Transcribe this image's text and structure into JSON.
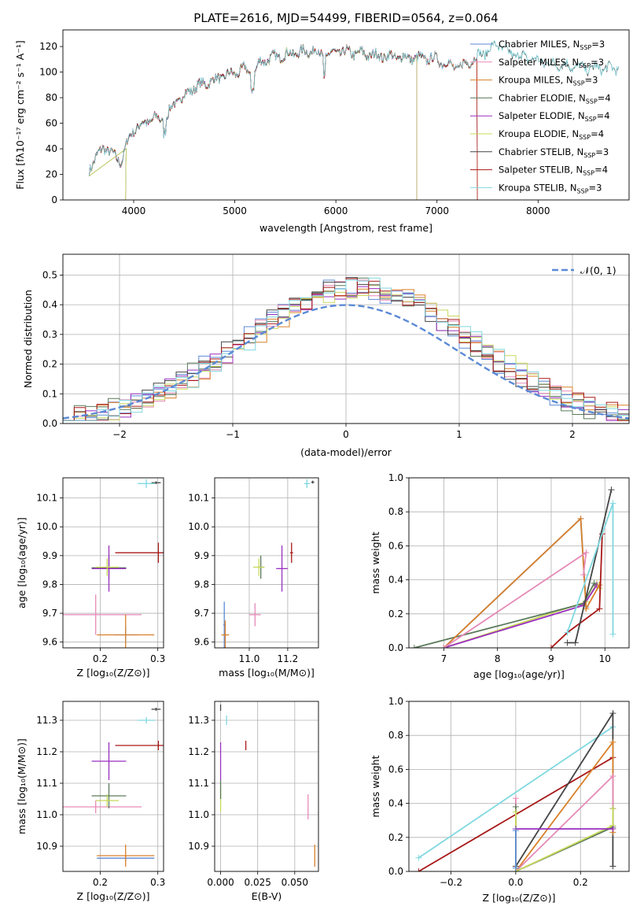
{
  "title": "PLATE=2616, MJD=54499, FIBERID=0564, z=0.064",
  "colors": {
    "chabrier_miles": "#5b8ad6",
    "salpeter_miles": "#e68ab8",
    "kroupa_miles": "#d9802a",
    "chabrier_elodie": "#5a7a5a",
    "salpeter_elodie": "#9a2fbf",
    "kroupa_elodie": "#c8d85a",
    "chabrier_stelib": "#444444",
    "salpeter_stelib": "#a81818",
    "kroupa_stelib": "#7fd8e0",
    "normal_curve": "#5b8ad6"
  },
  "chart_data": [
    {
      "id": "spectrum",
      "type": "line",
      "xlabel": "wavelength [Angstrom, rest frame]",
      "ylabel": "Flux [fλ10⁻¹⁷ erg cm⁻² s⁻¹ A⁻¹]",
      "xlim": [
        3300,
        8900
      ],
      "ylim": [
        0,
        133
      ],
      "xticks": [
        "4000",
        "5000",
        "6000",
        "7000",
        "8000"
      ],
      "yticks": [
        "0",
        "20",
        "40",
        "60",
        "80",
        "100",
        "120"
      ],
      "grid": false,
      "legend_position": "top-right",
      "legend": [
        {
          "key": "chabrier_miles",
          "base": "Chabrier MILES, N",
          "sub": "SSP",
          "tail": "=3"
        },
        {
          "key": "salpeter_miles",
          "base": "Salpeter MILES, N",
          "sub": "SSP",
          "tail": "=3"
        },
        {
          "key": "kroupa_miles",
          "base": "Kroupa MILES, N",
          "sub": "SSP",
          "tail": "=3"
        },
        {
          "key": "chabrier_elodie",
          "base": "Chabrier ELODIE, N",
          "sub": "SSP",
          "tail": "=4"
        },
        {
          "key": "salpeter_elodie",
          "base": "Salpeter ELODIE, N",
          "sub": "SSP",
          "tail": "=4"
        },
        {
          "key": "kroupa_elodie",
          "base": "Kroupa ELODIE, N",
          "sub": "SSP",
          "tail": "=4"
        },
        {
          "key": "chabrier_stelib",
          "base": "Chabrier STELIB, N",
          "sub": "SSP",
          "tail": "=3"
        },
        {
          "key": "salpeter_stelib",
          "base": "Salpeter STELIB, N",
          "sub": "SSP",
          "tail": "=4"
        },
        {
          "key": "kroupa_stelib",
          "base": "Kroupa STELIB, N",
          "sub": "SSP",
          "tail": "=3"
        }
      ],
      "continuum": [
        [
          3560,
          25
        ],
        [
          3650,
          35
        ],
        [
          3700,
          42
        ],
        [
          3800,
          35
        ],
        [
          3880,
          30
        ],
        [
          3950,
          48
        ],
        [
          4000,
          55
        ],
        [
          4100,
          60
        ],
        [
          4200,
          64
        ],
        [
          4300,
          62
        ],
        [
          4400,
          75
        ],
        [
          4500,
          82
        ],
        [
          4600,
          88
        ],
        [
          4700,
          91
        ],
        [
          4800,
          94
        ],
        [
          4900,
          97
        ],
        [
          5000,
          99
        ],
        [
          5100,
          103
        ],
        [
          5175,
          96
        ],
        [
          5250,
          108
        ],
        [
          5400,
          112
        ],
        [
          5600,
          115
        ],
        [
          5800,
          117
        ],
        [
          5890,
          112
        ],
        [
          6000,
          116
        ],
        [
          6200,
          115
        ],
        [
          6400,
          113
        ],
        [
          6600,
          112
        ],
        [
          6800,
          111
        ],
        [
          7000,
          110
        ],
        [
          7200,
          103
        ],
        [
          7400,
          112
        ],
        [
          7600,
          122
        ],
        [
          7700,
          115
        ],
        [
          7900,
          111
        ],
        [
          8100,
          107
        ],
        [
          8300,
          105
        ],
        [
          8500,
          103
        ],
        [
          8800,
          103
        ]
      ],
      "series_end": {
        "chabrier_miles": 7400,
        "salpeter_miles": 7400,
        "kroupa_miles": 7400,
        "chabrier_elodie": 6800,
        "salpeter_elodie": 6800,
        "kroupa_elodie": 6800,
        "chabrier_stelib": 8800,
        "salpeter_stelib": 7400,
        "kroupa_stelib": 8800
      }
    },
    {
      "id": "residual_hist",
      "type": "line",
      "xlabel": "(data-model)/error",
      "ylabel": "Normed distribution",
      "xlim": [
        -2.5,
        2.5
      ],
      "ylim": [
        0,
        0.57
      ],
      "xticks": [
        "−2",
        "−1",
        "0",
        "1",
        "2"
      ],
      "yticks": [
        "0.0",
        "0.1",
        "0.2",
        "0.3",
        "0.4",
        "0.5"
      ],
      "grid": true,
      "legend_position": "top-right",
      "legend": [
        {
          "key": "normal_curve",
          "label": "𝒩(0, 1)"
        }
      ],
      "bin_width": 0.1
    },
    {
      "id": "age_vs_Z",
      "type": "scatter",
      "xlabel": "Z [log₁₀(Z/Z⊙)]",
      "ylabel": "age  [log₁₀(age/yr)]",
      "xlim": [
        0.135,
        0.31
      ],
      "ylim": [
        9.58,
        10.17
      ],
      "xticks": [
        "0.2",
        "0.3"
      ],
      "yticks": [
        "9.6",
        "9.7",
        "9.8",
        "9.9",
        "10.0",
        "10.1"
      ],
      "grid": true,
      "points": [
        {
          "key": "chabrier_miles",
          "x": 0.244,
          "xerr": 0.02,
          "y": 9.625,
          "yerr": 0.03
        },
        {
          "key": "salpeter_miles",
          "x": 0.192,
          "xerr": 0.08,
          "y": 9.695,
          "yerr": 0.07
        },
        {
          "key": "kroupa_miles",
          "x": 0.244,
          "xerr": 0.05,
          "y": 9.625,
          "yerr": 0.07
        },
        {
          "key": "chabrier_elodie",
          "x": 0.215,
          "xerr": 0.03,
          "y": 9.858,
          "yerr": 0.04
        },
        {
          "key": "salpeter_elodie",
          "x": 0.215,
          "xerr": 0.03,
          "y": 9.855,
          "yerr": 0.08
        },
        {
          "key": "kroupa_elodie",
          "x": 0.212,
          "xerr": 0.02,
          "y": 9.86,
          "yerr": 0.03
        },
        {
          "key": "chabrier_stelib",
          "x": 0.297,
          "xerr": 0.008,
          "y": 10.153,
          "yerr": 0.005
        },
        {
          "key": "salpeter_stelib",
          "x": 0.301,
          "xerr": 0.075,
          "y": 9.91,
          "yerr": 0.035
        },
        {
          "key": "kroupa_stelib",
          "x": 0.28,
          "xerr": 0.015,
          "y": 10.15,
          "yerr": 0.015
        }
      ]
    },
    {
      "id": "age_vs_mass",
      "type": "scatter",
      "xlabel": "mass [log₁₀(M/M⊙)]",
      "ylabel": "",
      "xlim": [
        10.82,
        11.36
      ],
      "ylim": [
        9.58,
        10.17
      ],
      "xticks": [
        "11.0",
        "11.2"
      ],
      "yticks": [
        "9.6",
        "9.7",
        "9.8",
        "9.9",
        "10.0",
        "10.1"
      ],
      "grid": true,
      "points": [
        {
          "key": "chabrier_miles",
          "x": 10.87,
          "xerr": 0.005,
          "y": 9.66,
          "yerr": 0.08
        },
        {
          "key": "salpeter_miles",
          "x": 11.03,
          "xerr": 0.03,
          "y": 9.695,
          "yerr": 0.04
        },
        {
          "key": "kroupa_miles",
          "x": 10.875,
          "xerr": 0.02,
          "y": 9.625,
          "yerr": 0.05
        },
        {
          "key": "chabrier_elodie",
          "x": 11.06,
          "xerr": 0.015,
          "y": 9.86,
          "yerr": 0.04
        },
        {
          "key": "salpeter_elodie",
          "x": 11.17,
          "xerr": 0.03,
          "y": 9.855,
          "yerr": 0.08
        },
        {
          "key": "kroupa_elodie",
          "x": 11.05,
          "xerr": 0.03,
          "y": 9.86,
          "yerr": 0.03
        },
        {
          "key": "chabrier_stelib",
          "x": 11.33,
          "xerr": 0.008,
          "y": 10.155,
          "yerr": 0.005
        },
        {
          "key": "salpeter_stelib",
          "x": 11.22,
          "xerr": 0.008,
          "y": 9.91,
          "yerr": 0.035
        },
        {
          "key": "kroupa_stelib",
          "x": 11.3,
          "xerr": 0.015,
          "y": 10.15,
          "yerr": 0.015
        }
      ]
    },
    {
      "id": "weight_vs_age",
      "type": "line",
      "xlabel": "age  [log₁₀(age/yr)]",
      "ylabel": "mass weight",
      "xlim": [
        6.35,
        10.45
      ],
      "ylim": [
        0,
        1
      ],
      "xticks": [
        "7",
        "8",
        "9",
        "10"
      ],
      "yticks": [
        "0.0",
        "0.2",
        "0.4",
        "0.6",
        "0.8",
        "1.0"
      ],
      "grid": true,
      "series": [
        {
          "key": "kroupa_elodie",
          "points": [
            [
              7.0,
              0.0
            ],
            [
              9.65,
              0.27
            ],
            [
              9.85,
              0.38
            ],
            [
              9.9,
              0.35
            ]
          ]
        },
        {
          "key": "chabrier_elodie",
          "points": [
            [
              6.45,
              0.0
            ],
            [
              9.6,
              0.26
            ],
            [
              9.8,
              0.38
            ],
            [
              9.85,
              0.37
            ]
          ]
        },
        {
          "key": "salpeter_elodie",
          "points": [
            [
              7.0,
              0.0
            ],
            [
              9.6,
              0.25
            ],
            [
              9.85,
              0.37
            ]
          ]
        },
        {
          "key": "chabrier_miles",
          "points": [
            [
              7.0,
              0.0
            ],
            [
              9.55,
              0.76
            ],
            [
              9.65,
              0.24
            ]
          ]
        },
        {
          "key": "kroupa_miles",
          "points": [
            [
              7.0,
              0.0
            ],
            [
              9.55,
              0.76
            ],
            [
              9.65,
              0.23
            ],
            [
              9.9,
              0.37
            ]
          ]
        },
        {
          "key": "salpeter_miles",
          "points": [
            [
              7.0,
              0.0
            ],
            [
              9.65,
              0.56
            ],
            [
              9.6,
              0.43
            ]
          ]
        },
        {
          "key": "salpeter_stelib",
          "points": [
            [
              9.0,
              0.0
            ],
            [
              9.3,
              0.09
            ],
            [
              9.9,
              0.23
            ],
            [
              9.95,
              0.67
            ]
          ]
        },
        {
          "key": "chabrier_stelib",
          "points": [
            [
              9.3,
              0.03
            ],
            [
              9.45,
              0.03
            ],
            [
              10.12,
              0.93
            ]
          ]
        },
        {
          "key": "kroupa_stelib",
          "points": [
            [
              9.3,
              0.09
            ],
            [
              10.15,
              0.85
            ],
            [
              10.15,
              0.08
            ]
          ]
        }
      ]
    },
    {
      "id": "mass_vs_Z",
      "type": "scatter",
      "xlabel": "Z [log₁₀(Z/Z⊙)]",
      "ylabel": "mass [log₁₀(M/M⊙)]",
      "xlim": [
        0.135,
        0.31
      ],
      "ylim": [
        10.82,
        11.36
      ],
      "xticks": [
        "0.2",
        "0.3"
      ],
      "yticks": [
        "10.9",
        "11.0",
        "11.1",
        "11.2",
        "11.3"
      ],
      "grid": true,
      "points": [
        {
          "key": "chabrier_miles",
          "x": 0.244,
          "xerr": 0.05,
          "y": 10.862,
          "yerr": 0.01
        },
        {
          "key": "salpeter_miles",
          "x": 0.192,
          "xerr": 0.08,
          "y": 11.025,
          "yerr": 0.02
        },
        {
          "key": "kroupa_miles",
          "x": 0.244,
          "xerr": 0.05,
          "y": 10.87,
          "yerr": 0.035
        },
        {
          "key": "chabrier_elodie",
          "x": 0.215,
          "xerr": 0.03,
          "y": 11.06,
          "yerr": 0.04
        },
        {
          "key": "salpeter_elodie",
          "x": 0.215,
          "xerr": 0.03,
          "y": 11.17,
          "yerr": 0.06
        },
        {
          "key": "kroupa_elodie",
          "x": 0.212,
          "xerr": 0.02,
          "y": 11.045,
          "yerr": 0.02
        },
        {
          "key": "chabrier_stelib",
          "x": 0.297,
          "xerr": 0.008,
          "y": 11.335,
          "yerr": 0.005
        },
        {
          "key": "salpeter_stelib",
          "x": 0.301,
          "xerr": 0.075,
          "y": 11.22,
          "yerr": 0.015
        },
        {
          "key": "kroupa_stelib",
          "x": 0.28,
          "xerr": 0.015,
          "y": 11.3,
          "yerr": 0.01
        }
      ]
    },
    {
      "id": "mass_vs_ebv",
      "type": "scatter",
      "xlabel": "E(B-V)",
      "ylabel": "",
      "xlim": [
        -0.004,
        0.066
      ],
      "ylim": [
        10.82,
        11.36
      ],
      "xticks": [
        "0.000",
        "0.025",
        "0.050"
      ],
      "yticks": [
        "10.9",
        "11.0",
        "11.1",
        "11.2",
        "11.3"
      ],
      "grid": true,
      "points": [
        {
          "key": "kroupa_miles",
          "x": 0.0635,
          "xerr": 0.0002,
          "y": 10.87,
          "yerr": 0.035
        },
        {
          "key": "salpeter_miles",
          "x": 0.059,
          "xerr": 0.0002,
          "y": 11.025,
          "yerr": 0.04
        },
        {
          "key": "salpeter_elodie",
          "x": 0.0,
          "xerr": 0.0002,
          "y": 11.17,
          "yerr": 0.06
        },
        {
          "key": "kroupa_elodie",
          "x": 0.0,
          "xerr": 0.0002,
          "y": 11.05,
          "yerr": 0.04
        },
        {
          "key": "chabrier_elodie",
          "x": 0.0,
          "xerr": 0.0002,
          "y": 11.08,
          "yerr": 0.03
        },
        {
          "key": "salpeter_stelib",
          "x": 0.017,
          "xerr": 0.0002,
          "y": 11.22,
          "yerr": 0.015
        },
        {
          "key": "kroupa_stelib",
          "x": 0.004,
          "xerr": 0.0002,
          "y": 11.3,
          "yerr": 0.015
        },
        {
          "key": "chabrier_stelib",
          "x": 0.0,
          "xerr": 0.0002,
          "y": 11.34,
          "yerr": 0.01
        }
      ]
    },
    {
      "id": "weight_vs_Z",
      "type": "line",
      "xlabel": "Z [log₁₀(Z/Z⊙)]",
      "ylabel": "mass weight",
      "xlim": [
        -0.33,
        0.35
      ],
      "ylim": [
        0,
        1
      ],
      "xticks": [
        "−0.2",
        "0.0",
        "0.2"
      ],
      "yticks": [
        "0.0",
        "0.2",
        "0.4",
        "0.6",
        "0.8",
        "1.0"
      ],
      "grid": true,
      "series": [
        {
          "key": "kroupa_stelib",
          "points": [
            [
              -0.3,
              0.08
            ],
            [
              0.3,
              0.85
            ]
          ]
        },
        {
          "key": "salpeter_stelib",
          "points": [
            [
              -0.3,
              0.0
            ],
            [
              0.3,
              0.67
            ]
          ]
        },
        {
          "key": "chabrier_stelib",
          "points": [
            [
              0.0,
              0.03
            ],
            [
              0.3,
              0.93
            ],
            [
              0.3,
              0.03
            ]
          ]
        },
        {
          "key": "kroupa_miles",
          "points": [
            [
              0.0,
              0.0
            ],
            [
              0.3,
              0.76
            ],
            [
              0.3,
              0.23
            ]
          ]
        },
        {
          "key": "salpeter_miles",
          "points": [
            [
              0.0,
              0.43
            ],
            [
              0.0,
              0.0
            ],
            [
              0.3,
              0.56
            ],
            [
              0.3,
              0.37
            ]
          ]
        },
        {
          "key": "chabrier_elodie",
          "points": [
            [
              0.0,
              0.38
            ],
            [
              0.0,
              0.0
            ],
            [
              0.3,
              0.26
            ],
            [
              0.3,
              0.37
            ]
          ]
        },
        {
          "key": "kroupa_elodie",
          "points": [
            [
              0.0,
              0.35
            ],
            [
              0.0,
              0.0
            ],
            [
              0.3,
              0.27
            ],
            [
              0.3,
              0.37
            ]
          ]
        },
        {
          "key": "salpeter_elodie",
          "points": [
            [
              0.0,
              0.25
            ],
            [
              0.3,
              0.25
            ]
          ]
        },
        {
          "key": "chabrier_miles",
          "points": [
            [
              0.0,
              0.24
            ],
            [
              0.0,
              0.02
            ]
          ]
        }
      ]
    }
  ]
}
